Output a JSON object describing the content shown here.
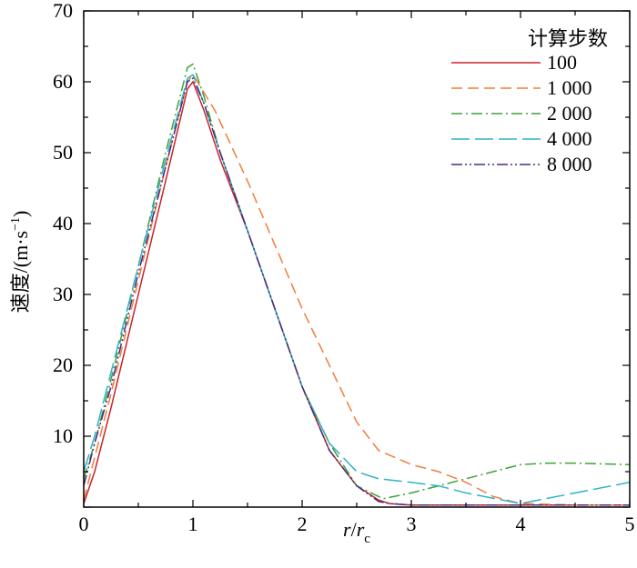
{
  "chart_data": {
    "type": "line",
    "xlabel": {
      "main": "r",
      "slash": "/",
      "sym": "r",
      "sub": "c"
    },
    "ylabel": {
      "text": "速度/(m·s",
      "sup": "−1",
      "close": ")"
    },
    "xlim": [
      0,
      5
    ],
    "ylim": [
      0,
      70
    ],
    "x_ticks": [
      0,
      1,
      2,
      3,
      4,
      5
    ],
    "x_tick_labels": [
      "0",
      "1",
      "2",
      "3",
      "4",
      "5"
    ],
    "y_ticks": [
      10,
      20,
      30,
      40,
      50,
      60,
      70
    ],
    "y_tick_labels": [
      "10",
      "20",
      "30",
      "40",
      "50",
      "60",
      "70"
    ],
    "grid": false,
    "legend": {
      "title": "计算步数",
      "position": "top-right",
      "entries": [
        "100",
        "1 000",
        "2 000",
        "4 000",
        "8 000"
      ]
    },
    "series": [
      {
        "name": "100",
        "color": "#c8242b",
        "dash": "solid",
        "points": [
          [
            0.0,
            0.5
          ],
          [
            0.1,
            5
          ],
          [
            0.25,
            14
          ],
          [
            0.5,
            30
          ],
          [
            0.75,
            46
          ],
          [
            0.95,
            59
          ],
          [
            1.0,
            60
          ],
          [
            1.1,
            56
          ],
          [
            1.25,
            49
          ],
          [
            1.5,
            39
          ],
          [
            1.75,
            28
          ],
          [
            2.0,
            17
          ],
          [
            2.25,
            8
          ],
          [
            2.5,
            3
          ],
          [
            2.7,
            1
          ],
          [
            2.8,
            0.5
          ],
          [
            3.0,
            0.3
          ],
          [
            3.5,
            0.3
          ],
          [
            4.0,
            0.3
          ],
          [
            4.5,
            0.3
          ],
          [
            5.0,
            0.3
          ]
        ]
      },
      {
        "name": "1 000",
        "color": "#f07d3c",
        "dash": "long",
        "points": [
          [
            0.0,
            1
          ],
          [
            0.1,
            7
          ],
          [
            0.25,
            16
          ],
          [
            0.5,
            32
          ],
          [
            0.75,
            48
          ],
          [
            0.95,
            60
          ],
          [
            1.0,
            61
          ],
          [
            1.2,
            56
          ],
          [
            1.5,
            46
          ],
          [
            1.75,
            37
          ],
          [
            2.0,
            28
          ],
          [
            2.25,
            20
          ],
          [
            2.5,
            12
          ],
          [
            2.7,
            8
          ],
          [
            3.0,
            6
          ],
          [
            3.25,
            5
          ],
          [
            3.5,
            3.5
          ],
          [
            3.75,
            1.5
          ],
          [
            4.0,
            0.5
          ],
          [
            4.5,
            0.3
          ],
          [
            5.0,
            0.3
          ]
        ]
      },
      {
        "name": "2 000",
        "color": "#3da23a",
        "dash": "dashdot",
        "points": [
          [
            0.0,
            4
          ],
          [
            0.1,
            9
          ],
          [
            0.25,
            18
          ],
          [
            0.5,
            34
          ],
          [
            0.75,
            50
          ],
          [
            0.95,
            62
          ],
          [
            1.0,
            62.5
          ],
          [
            1.1,
            58
          ],
          [
            1.25,
            50
          ],
          [
            1.5,
            39
          ],
          [
            1.75,
            28
          ],
          [
            2.0,
            17
          ],
          [
            2.25,
            9
          ],
          [
            2.5,
            3
          ],
          [
            2.7,
            1.5
          ],
          [
            2.75,
            1.2
          ],
          [
            3.0,
            2
          ],
          [
            3.5,
            4
          ],
          [
            4.0,
            6
          ],
          [
            4.25,
            6.2
          ],
          [
            4.5,
            6.2
          ],
          [
            5.0,
            6
          ]
        ]
      },
      {
        "name": "4 000",
        "color": "#2eb3c6",
        "dash": "longdash",
        "points": [
          [
            0.0,
            5
          ],
          [
            0.1,
            10
          ],
          [
            0.25,
            19
          ],
          [
            0.5,
            34
          ],
          [
            0.75,
            49
          ],
          [
            0.95,
            60.5
          ],
          [
            1.0,
            61
          ],
          [
            1.1,
            57
          ],
          [
            1.25,
            50
          ],
          [
            1.5,
            39
          ],
          [
            1.75,
            28
          ],
          [
            2.0,
            17
          ],
          [
            2.25,
            9
          ],
          [
            2.5,
            5
          ],
          [
            2.7,
            4
          ],
          [
            3.0,
            3.5
          ],
          [
            3.25,
            3
          ],
          [
            3.5,
            2
          ],
          [
            4.0,
            0.5
          ],
          [
            4.5,
            2
          ],
          [
            5.0,
            3.5
          ]
        ]
      },
      {
        "name": "8 000",
        "color": "#4b2a80",
        "dash": "dashdotdot",
        "points": [
          [
            0.0,
            3
          ],
          [
            0.1,
            9
          ],
          [
            0.25,
            17
          ],
          [
            0.5,
            33
          ],
          [
            0.75,
            48
          ],
          [
            0.95,
            60
          ],
          [
            1.0,
            60.5
          ],
          [
            1.1,
            57
          ],
          [
            1.25,
            50
          ],
          [
            1.5,
            39
          ],
          [
            1.75,
            28
          ],
          [
            2.0,
            17
          ],
          [
            2.25,
            8
          ],
          [
            2.5,
            3
          ],
          [
            2.7,
            0.8
          ],
          [
            2.8,
            0.5
          ],
          [
            3.0,
            0.3
          ],
          [
            3.5,
            0.3
          ],
          [
            4.0,
            0.3
          ],
          [
            4.5,
            0.3
          ],
          [
            5.0,
            0.3
          ]
        ]
      }
    ]
  }
}
